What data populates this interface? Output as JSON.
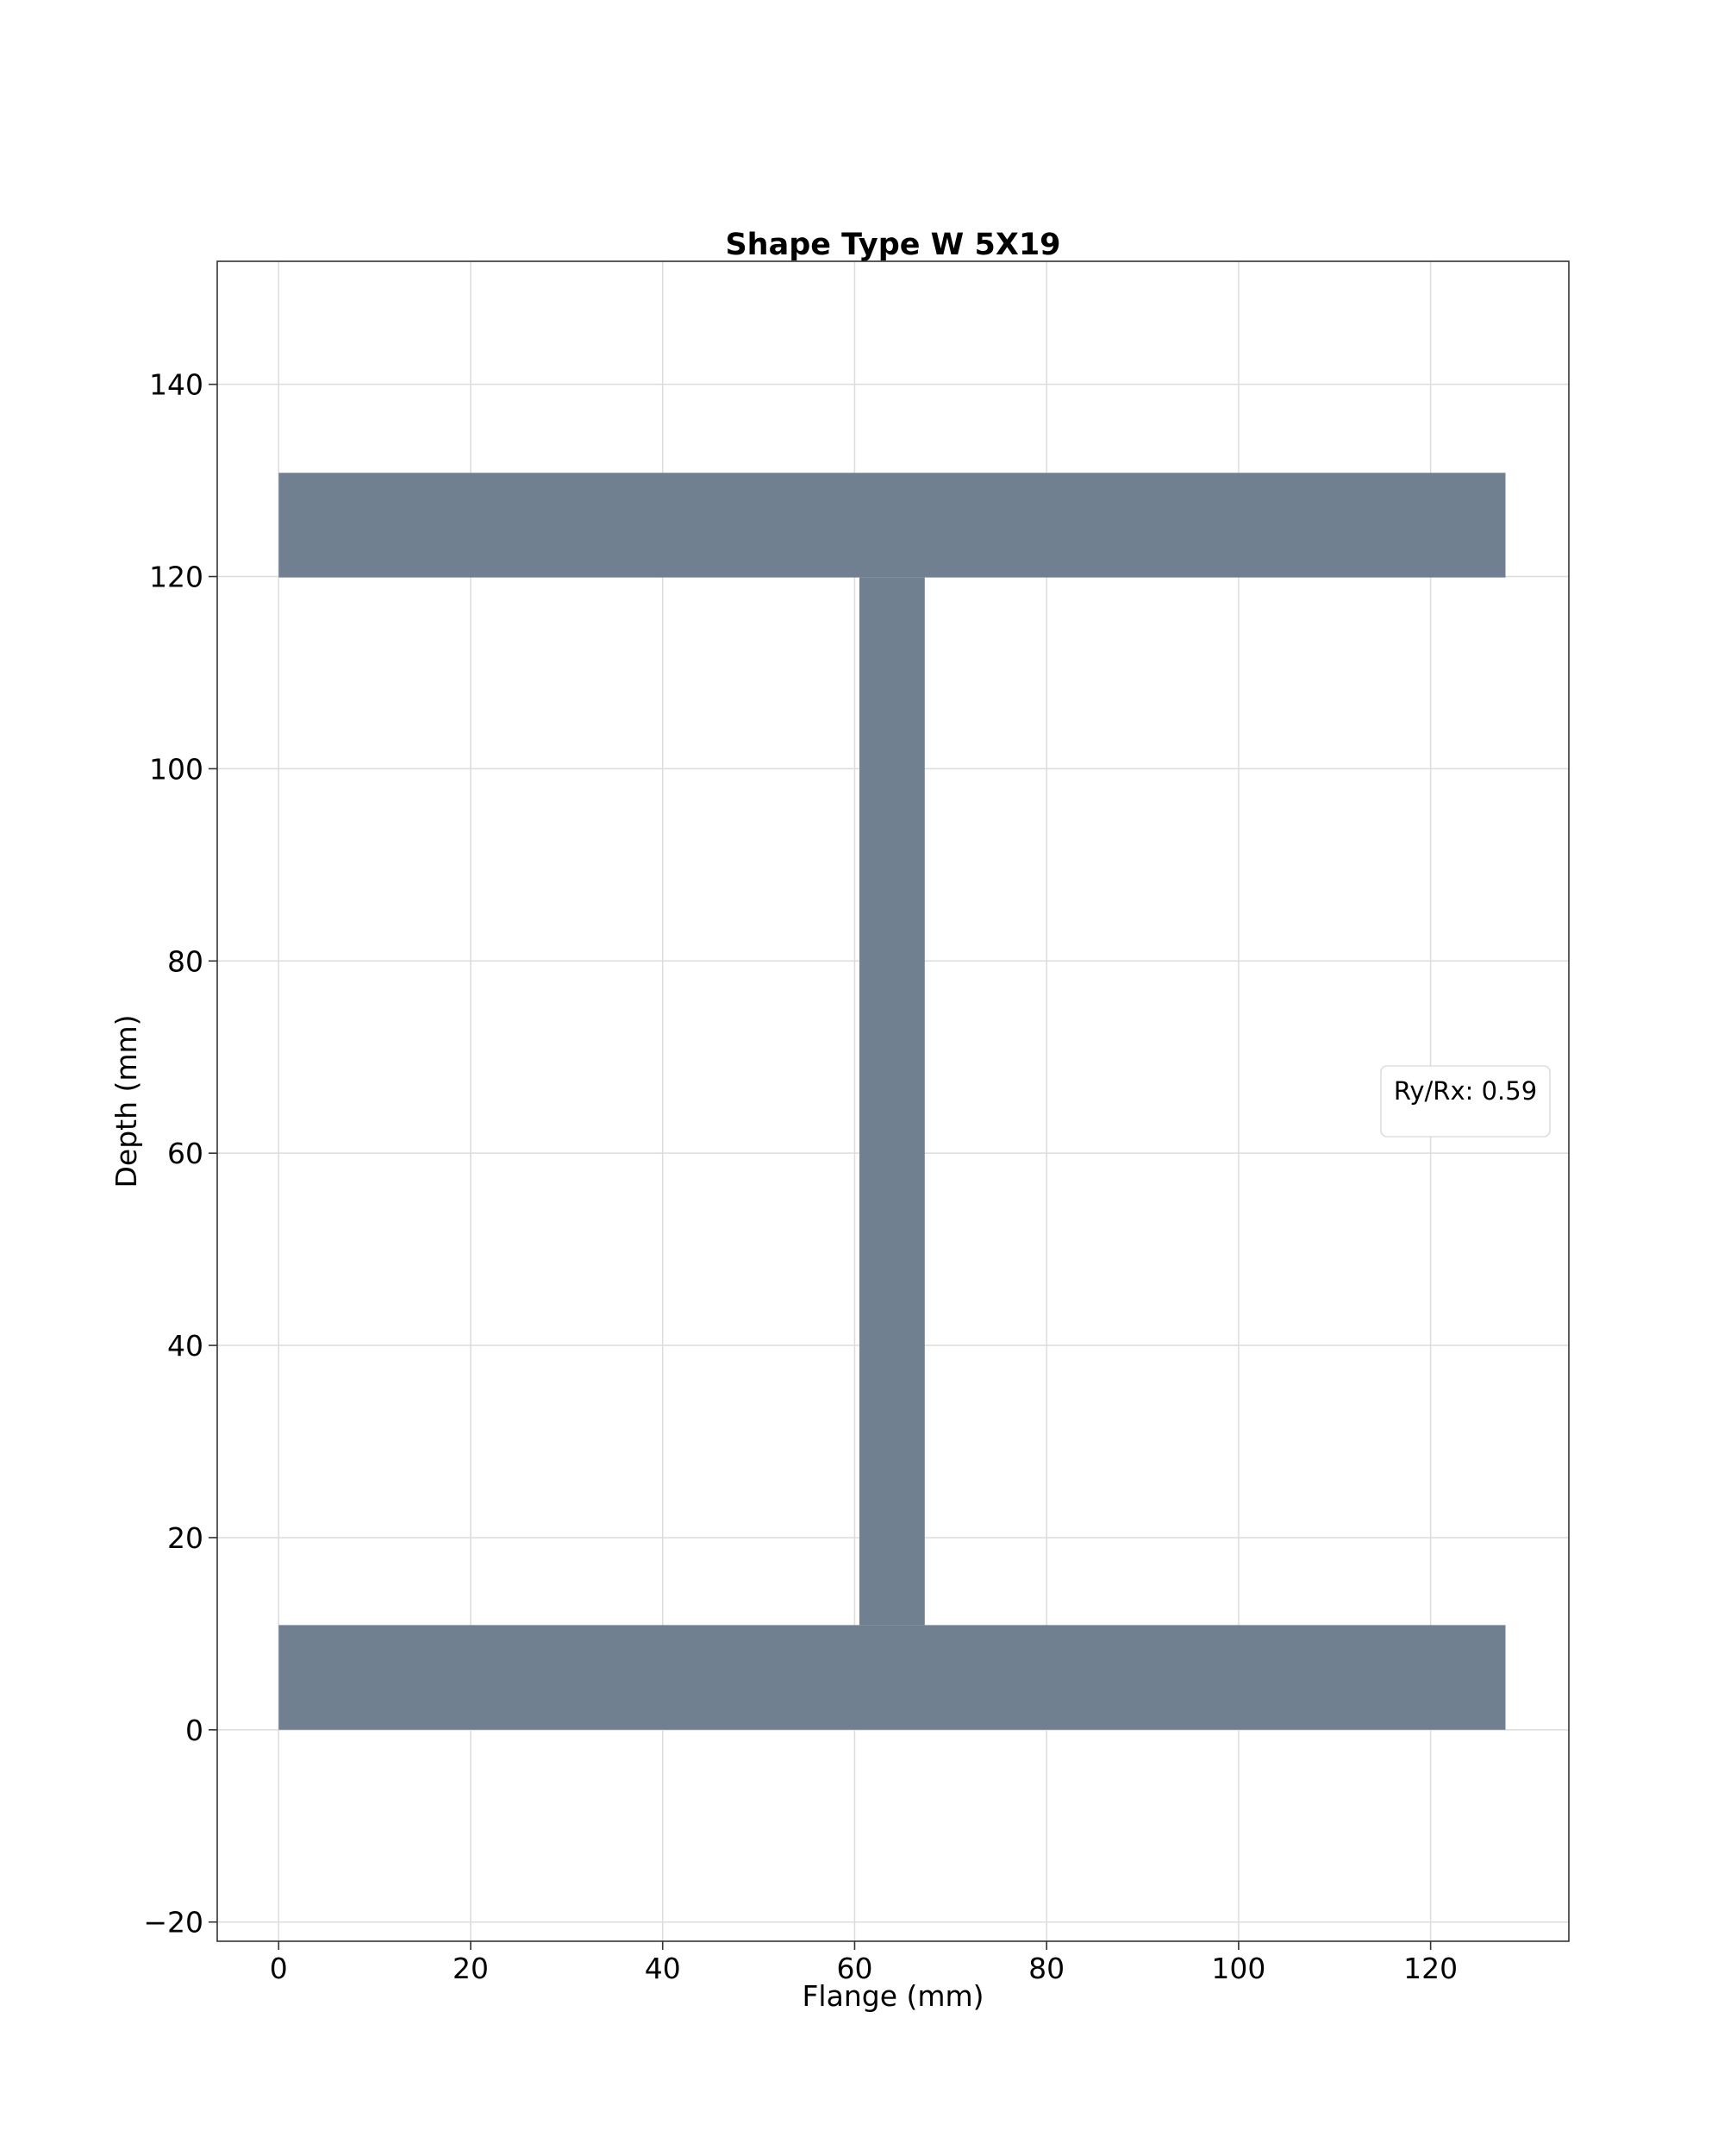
{
  "chart_data": {
    "type": "area",
    "title": "Shape Type W 5X19",
    "xlabel": "Flange (mm)",
    "ylabel": "Depth (mm)",
    "xlim": [
      -6.4,
      134.4
    ],
    "ylim": [
      -22.0,
      152.8
    ],
    "xticks": [
      0,
      20,
      40,
      60,
      80,
      100,
      120
    ],
    "xtick_labels": [
      "0",
      "20",
      "40",
      "60",
      "80",
      "100",
      "120"
    ],
    "yticks": [
      -20,
      0,
      20,
      40,
      60,
      80,
      100,
      120,
      140
    ],
    "ytick_labels": [
      "−20",
      "0",
      "20",
      "40",
      "60",
      "80",
      "100",
      "120",
      "140"
    ],
    "grid": true,
    "legend": {
      "text": "Ry/Rx: 0.59",
      "placement": "center-right"
    },
    "shape_color": "#708090",
    "series": [
      {
        "x": [
          0,
          127.8,
          127.8,
          0,
          0
        ],
        "y": [
          119.9,
          119.9,
          130.8,
          130.8,
          119.9
        ]
      },
      {
        "x": [
          60.5,
          67.3,
          67.3,
          60.5,
          60.5
        ],
        "y": [
          10.9,
          10.9,
          119.9,
          119.9,
          10.9
        ]
      },
      {
        "x": [
          0,
          127.8,
          127.8,
          0,
          0
        ],
        "y": [
          0,
          0,
          10.9,
          10.9,
          0
        ]
      }
    ]
  }
}
